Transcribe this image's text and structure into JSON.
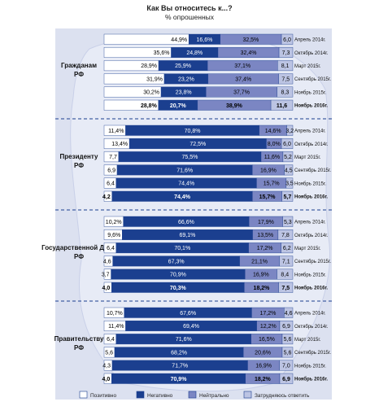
{
  "chart_data": {
    "type": "bar",
    "stacked": "100%",
    "orientation": "horizontal",
    "title": "Как Вы относитесь к...?",
    "subtitle": "% опрошенных",
    "series_names": [
      "Позитивно",
      "Негативно",
      "Нейтрально",
      "Затрудняюсь ответить"
    ],
    "colors": {
      "positive": "#ffffff",
      "negative": "#1b3f8f",
      "neutral": "#7b86c3",
      "dontknow": "#bcc4e3",
      "background": "#dce1f0"
    },
    "groups": [
      {
        "label": "Гражданам РФ",
        "rows": [
          {
            "period": "Апрель 2014г.",
            "labels": [
              "44,9%",
              "16,6%",
              "32,5%",
              "6,0"
            ],
            "values": [
              44.9,
              16.6,
              32.5,
              6.0
            ],
            "bold": false
          },
          {
            "period": "Октябрь 2014г.",
            "labels": [
              "35,6%",
              "24,8%",
              "32,4%",
              "7,3"
            ],
            "values": [
              35.6,
              24.8,
              32.4,
              7.3
            ],
            "bold": false
          },
          {
            "period": "Март 2015г.",
            "labels": [
              "28,9%",
              "25,9%",
              "37,1%",
              "8,1"
            ],
            "values": [
              28.9,
              25.9,
              37.1,
              8.1
            ],
            "bold": false
          },
          {
            "period": "Сентябрь 2015г.",
            "labels": [
              "31,9%",
              "23,2%",
              "37,4%",
              "7,5"
            ],
            "values": [
              31.9,
              23.2,
              37.4,
              7.5
            ],
            "bold": false
          },
          {
            "period": "Ноябрь 2015г.",
            "labels": [
              "30,2%",
              "23,8%",
              "37,7%",
              "8,3"
            ],
            "values": [
              30.2,
              23.8,
              37.7,
              8.3
            ],
            "bold": false
          },
          {
            "period": "Ноябрь 2016г.",
            "labels": [
              "28,8%",
              "20,7%",
              "38,9%",
              "11,6"
            ],
            "values": [
              28.8,
              20.7,
              38.9,
              11.6
            ],
            "bold": true
          }
        ]
      },
      {
        "label": "Президенту РФ",
        "rows": [
          {
            "period": "Апрель 2014г.",
            "labels": [
              "11,4%",
              "70,8%",
              "14,6%",
              "3,2"
            ],
            "values": [
              11.4,
              70.8,
              14.6,
              3.2
            ],
            "bold": false
          },
          {
            "period": "Октябрь 2014г.",
            "labels": [
              "13,4%",
              "72,5%",
              "8,0%",
              "6,0"
            ],
            "values": [
              13.4,
              72.5,
              8.0,
              6.0
            ],
            "bold": false
          },
          {
            "period": "Март 2015г.",
            "labels": [
              "7,7",
              "75,5%",
              "11,6%",
              "5,2"
            ],
            "values": [
              7.7,
              75.5,
              11.6,
              5.2
            ],
            "bold": false
          },
          {
            "period": "Сентябрь 2015г.",
            "labels": [
              "6,9",
              "71,6%",
              "16,9%",
              "4,5"
            ],
            "values": [
              6.9,
              71.6,
              16.9,
              4.5
            ],
            "bold": false
          },
          {
            "period": "Ноябрь 2015г.",
            "labels": [
              "6,4",
              "74,4%",
              "15,7%",
              "3,5"
            ],
            "values": [
              6.4,
              74.4,
              15.7,
              3.5
            ],
            "bold": false
          },
          {
            "period": "Ноябрь 2016г.",
            "labels": [
              "4,2",
              "74,4%",
              "15,7%",
              "5,7"
            ],
            "values": [
              4.2,
              74.4,
              15.7,
              5.7
            ],
            "bold": true
          }
        ]
      },
      {
        "label": "Государственной Думе РФ",
        "rows": [
          {
            "period": "Апрель 2014г.",
            "labels": [
              "10,2%",
              "66,6%",
              "17,9%",
              "5,3"
            ],
            "values": [
              10.2,
              66.6,
              17.9,
              5.3
            ],
            "bold": false
          },
          {
            "period": "Октябрь 2014г.",
            "labels": [
              "9,6%",
              "69,1%",
              "13,5%",
              "7,8"
            ],
            "values": [
              9.6,
              69.1,
              13.5,
              7.8
            ],
            "bold": false
          },
          {
            "period": "Март 2015г.",
            "labels": [
              "6,4",
              "70,1%",
              "17,2%",
              "6,2"
            ],
            "values": [
              6.4,
              70.1,
              17.2,
              6.2
            ],
            "bold": false
          },
          {
            "period": "Сентябрь 2015г.",
            "labels": [
              "4,6",
              "67,3%",
              "21,1%",
              "7,1"
            ],
            "values": [
              4.6,
              67.3,
              21.1,
              7.1
            ],
            "bold": false
          },
          {
            "period": "Ноябрь 2015г.",
            "labels": [
              "3,7",
              "70,9%",
              "16,9%",
              "8,4"
            ],
            "values": [
              3.7,
              70.9,
              16.9,
              8.4
            ],
            "bold": false
          },
          {
            "period": "Ноябрь 2016г.",
            "labels": [
              "4,0",
              "70,3%",
              "18,2%",
              "7,5"
            ],
            "values": [
              4.0,
              70.3,
              18.2,
              7.5
            ],
            "bold": true
          }
        ]
      },
      {
        "label": "Правительству РФ",
        "rows": [
          {
            "period": "Апрель 2014г.",
            "labels": [
              "10,7%",
              "67,6%",
              "17,2%",
              "4,6"
            ],
            "values": [
              10.7,
              67.6,
              17.2,
              4.6
            ],
            "bold": false
          },
          {
            "period": "Октябрь 2014г.",
            "labels": [
              "11,4%",
              "69,4%",
              "12,2%",
              "6,9"
            ],
            "values": [
              11.4,
              69.4,
              12.2,
              6.9
            ],
            "bold": false
          },
          {
            "period": "Март 2015г.",
            "labels": [
              "6,4",
              "71,6%",
              "16,5%",
              "5,6"
            ],
            "values": [
              6.4,
              71.6,
              16.5,
              5.6
            ],
            "bold": false
          },
          {
            "period": "Сентябрь 2015г.",
            "labels": [
              "5,6",
              "68,2%",
              "20,6%",
              "5,6"
            ],
            "values": [
              5.6,
              68.2,
              20.6,
              5.6
            ],
            "bold": false
          },
          {
            "period": "Ноябрь 2015г.",
            "labels": [
              "4,3",
              "71,7%",
              "16,9%",
              "7,0"
            ],
            "values": [
              4.3,
              71.7,
              16.9,
              7.0
            ],
            "bold": false
          },
          {
            "period": "Ноябрь 2016г.",
            "labels": [
              "4,0",
              "70,9%",
              "18,2%",
              "6,9"
            ],
            "values": [
              4.0,
              70.9,
              18.2,
              6.9
            ],
            "bold": true
          }
        ]
      }
    ],
    "legend": [
      "Позитивно",
      "Негативно",
      "Нейтрально",
      "Затрудняюсь ответить"
    ],
    "legend_position": "bottom"
  }
}
